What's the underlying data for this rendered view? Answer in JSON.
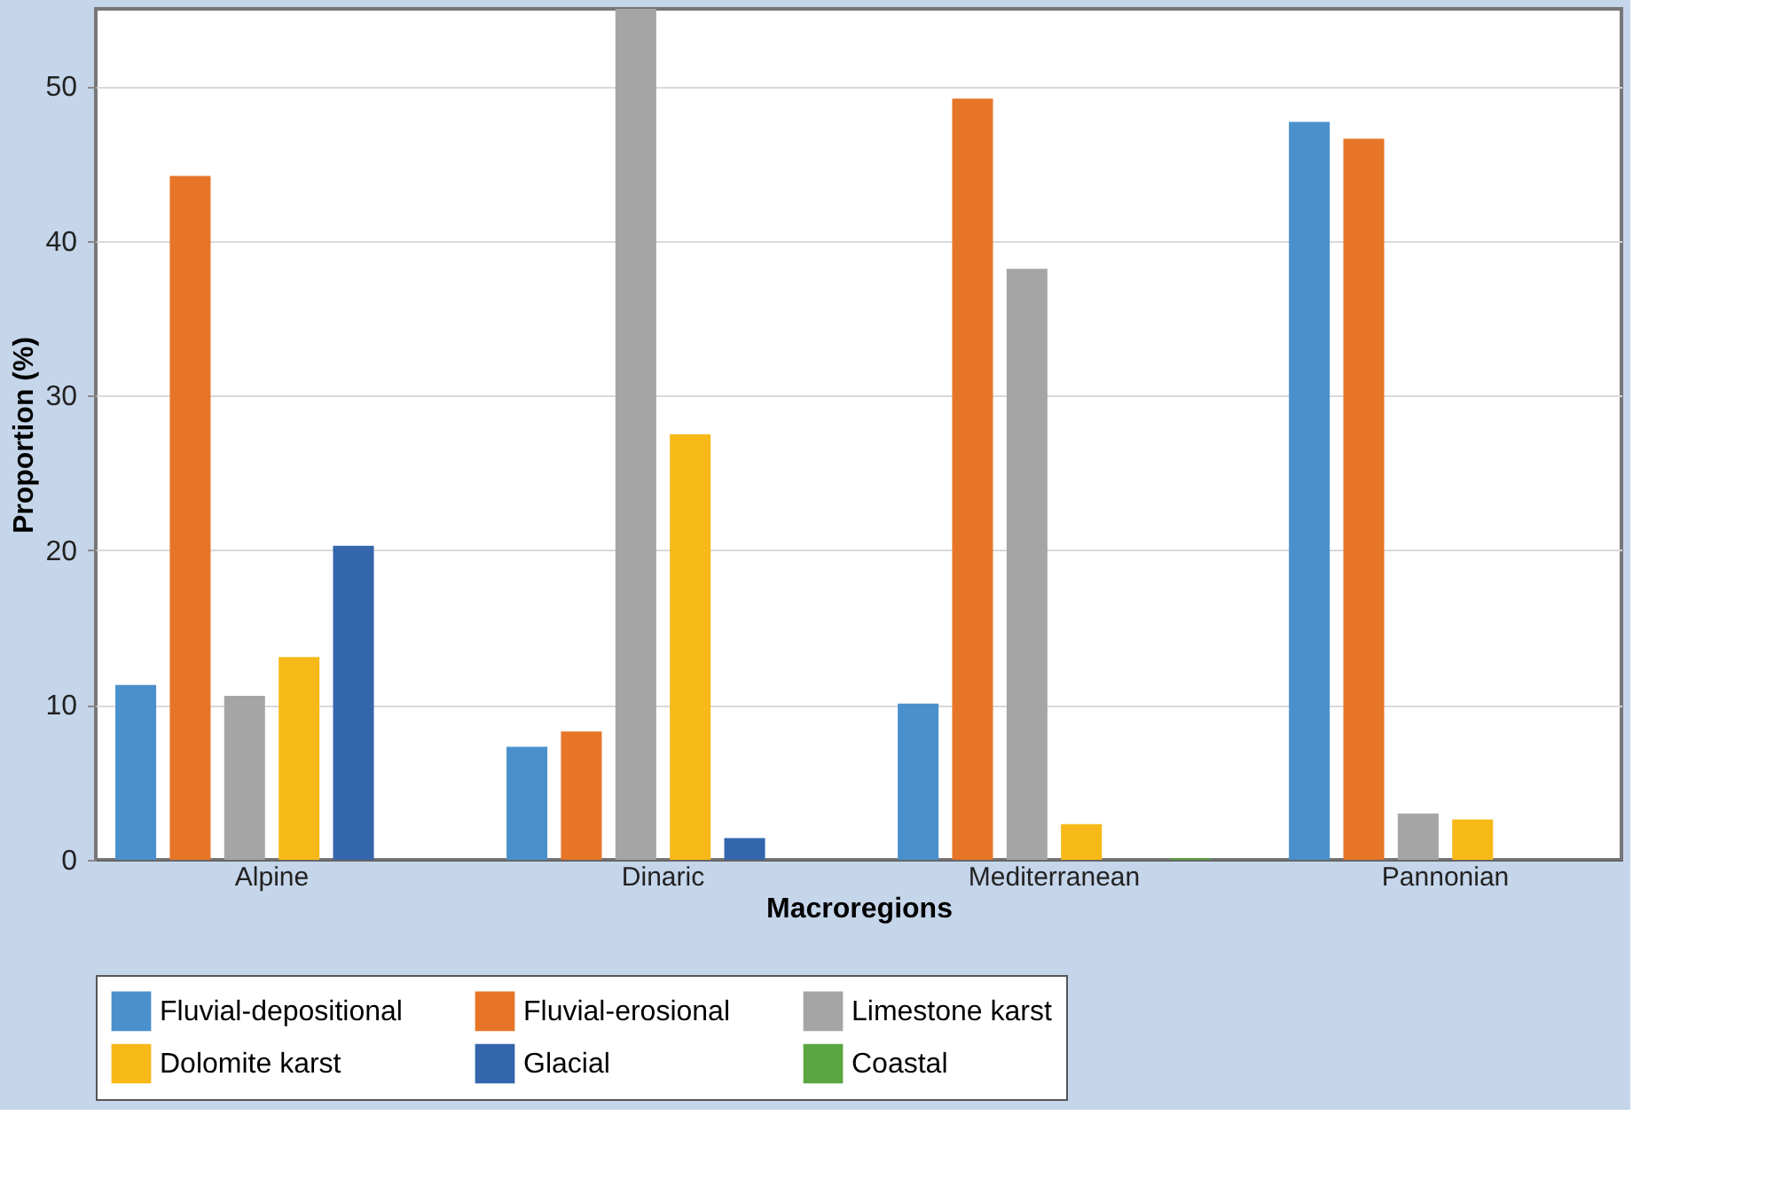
{
  "chart_data": {
    "type": "bar",
    "xlabel": "Macroregions",
    "ylabel": "Proportion (%)",
    "categories": [
      "Alpine",
      "Dinaric",
      "Mediterranean",
      "Pannonian"
    ],
    "series": [
      {
        "name": "Fluvial-depositional",
        "color": "#4a90cc",
        "values": [
          11.3,
          7.3,
          10.1,
          47.7
        ]
      },
      {
        "name": "Fluvial-erosional",
        "color": "#e67528",
        "values": [
          44.2,
          8.3,
          49.2,
          46.6
        ]
      },
      {
        "name": "Limestone karst",
        "color": "#a5a5a5",
        "values": [
          10.6,
          55,
          38.2,
          3.0
        ]
      },
      {
        "name": "Dolomite karst",
        "color": "#f7b917",
        "values": [
          13.1,
          27.5,
          2.3,
          2.6
        ]
      },
      {
        "name": "Glacial",
        "color": "#3366ad",
        "values": [
          20.3,
          1.4,
          null,
          null
        ]
      },
      {
        "name": "Coastal",
        "color": "#5aa640",
        "values": [
          null,
          null,
          0.1,
          null
        ]
      }
    ],
    "ylim": [
      0,
      55
    ],
    "yticks": [
      0,
      10,
      20,
      30,
      40,
      50
    ],
    "grid": "y",
    "legend": "bottom"
  }
}
